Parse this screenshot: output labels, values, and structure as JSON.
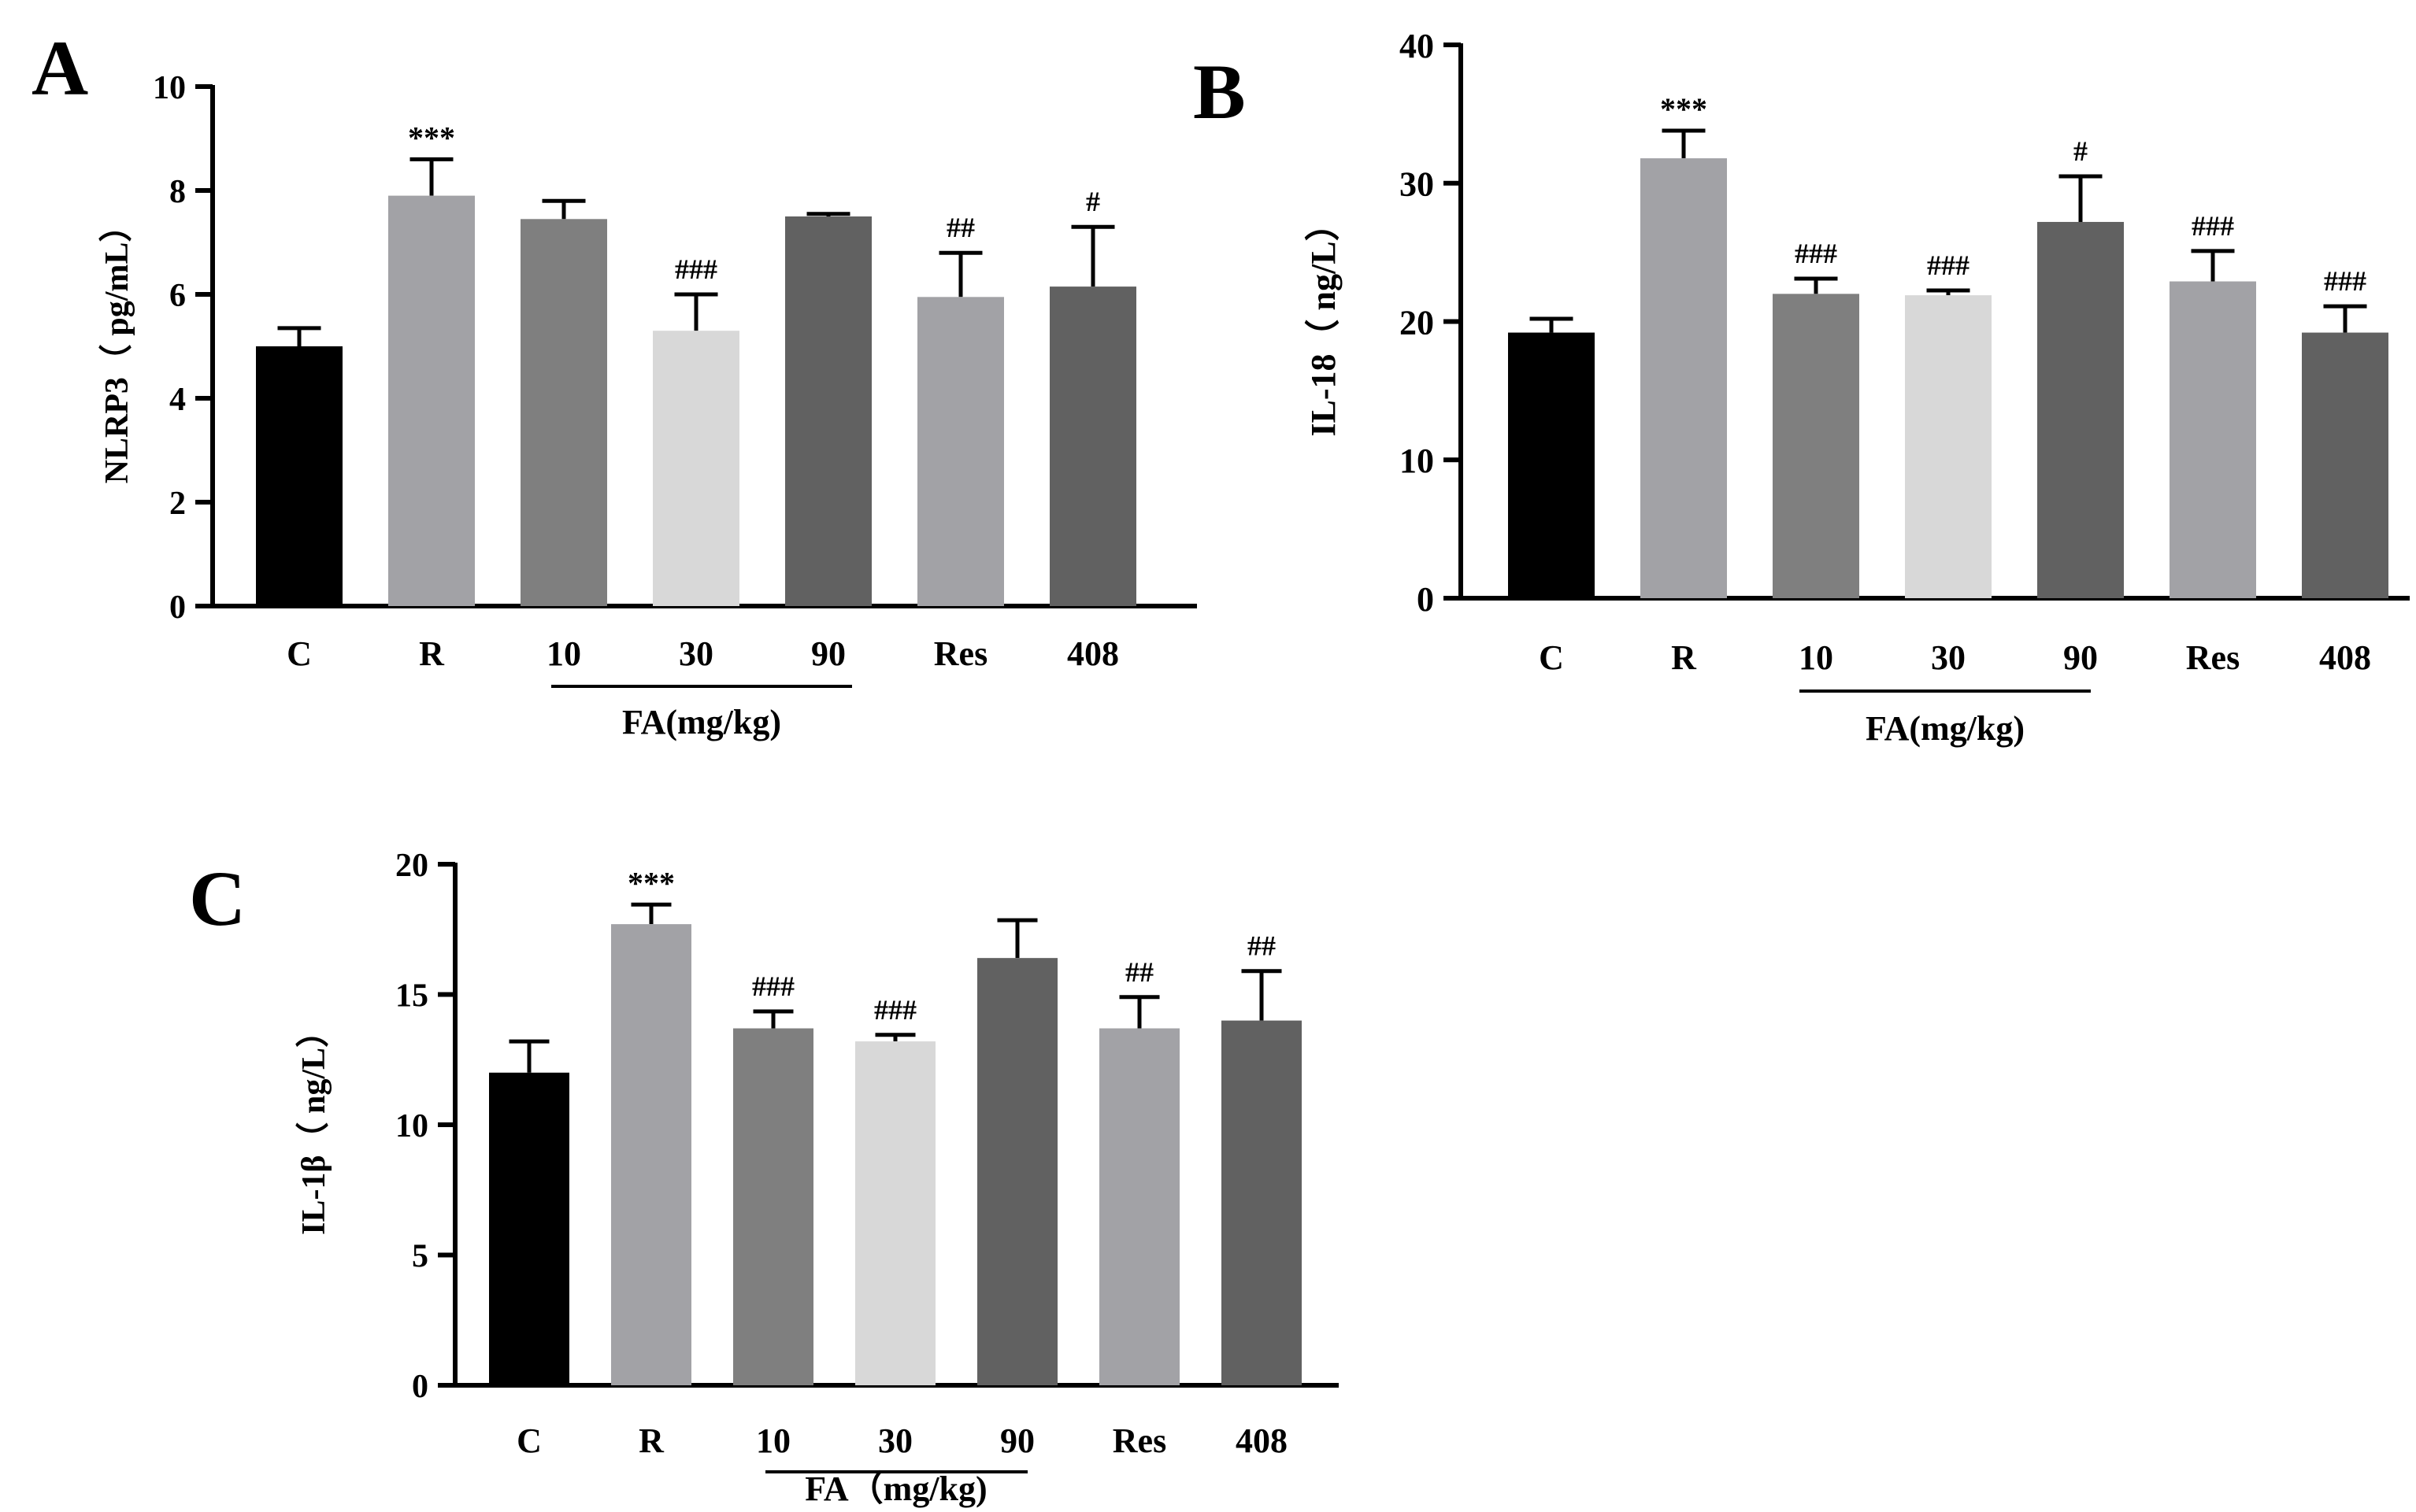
{
  "chart_data": [
    {
      "panel": "A",
      "type": "bar",
      "title": "",
      "xlabel": "",
      "ylabel": "NLRP3（ pg/mL）",
      "group_label": "FA(mg/kg)",
      "ylim": [
        0,
        10
      ],
      "yticks": [
        0,
        2,
        4,
        6,
        8,
        10
      ],
      "categories": [
        "C",
        "R",
        "10",
        "30",
        "90",
        "Res",
        "408"
      ],
      "values": [
        5.0,
        7.9,
        7.45,
        5.3,
        7.5,
        5.95,
        6.15
      ],
      "errors": [
        0.35,
        0.7,
        0.35,
        0.7,
        0.05,
        0.85,
        1.15
      ],
      "annotations": [
        "",
        "***",
        "",
        "###",
        "",
        "##",
        "#"
      ],
      "colors": [
        "#000000",
        "#a2a2a6",
        "#7f7f7f",
        "#d8d8d8",
        "#616161",
        "#a2a2a6",
        "#616161"
      ]
    },
    {
      "panel": "B",
      "type": "bar",
      "title": "",
      "xlabel": "",
      "ylabel": "IL-18（ ng/L）",
      "group_label": "FA(mg/kg)",
      "ylim": [
        0,
        40
      ],
      "yticks": [
        0,
        10,
        20,
        30,
        40
      ],
      "categories": [
        "C",
        "R",
        "10",
        "30",
        "90",
        "Res",
        "408"
      ],
      "values": [
        19.2,
        31.8,
        22.0,
        21.9,
        27.2,
        22.9,
        19.2
      ],
      "errors": [
        1.0,
        2.0,
        1.1,
        0.35,
        3.3,
        2.2,
        1.9
      ],
      "annotations": [
        "",
        "***",
        "###",
        "###",
        "#",
        "###",
        "###"
      ],
      "colors": [
        "#000000",
        "#a2a2a6",
        "#7f7f7f",
        "#d8d8d8",
        "#616161",
        "#a2a2a6",
        "#616161"
      ]
    },
    {
      "panel": "C",
      "type": "bar",
      "title": "",
      "xlabel": "",
      "ylabel": "IL-1β（ ng/L）",
      "group_label": "FA（mg/kg)",
      "ylim": [
        0,
        20
      ],
      "yticks": [
        0,
        5,
        10,
        15,
        20
      ],
      "categories": [
        "C",
        "R",
        "10",
        "30",
        "90",
        "Res",
        "408"
      ],
      "values": [
        12.0,
        17.7,
        13.7,
        13.2,
        16.4,
        13.7,
        14.0
      ],
      "errors": [
        1.2,
        0.75,
        0.65,
        0.25,
        1.45,
        1.2,
        1.9
      ],
      "annotations": [
        "",
        "***",
        "###",
        "###",
        "",
        "##",
        "##"
      ],
      "colors": [
        "#000000",
        "#a2a2a6",
        "#7f7f7f",
        "#d8d8d8",
        "#616161",
        "#a2a2a6",
        "#616161"
      ]
    }
  ]
}
